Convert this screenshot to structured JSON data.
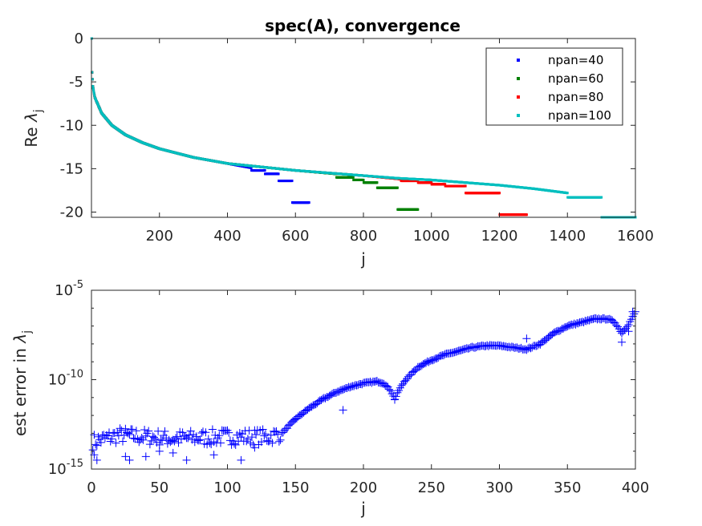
{
  "chart_data": [
    {
      "type": "scatter",
      "title": "spec(A), convergence",
      "xlabel": "j",
      "ylabel_prefix": "Re ",
      "ylabel_symbol": "λ",
      "ylabel_sub": "j",
      "xlim": [
        0,
        1600
      ],
      "ylim": [
        -20.6,
        0
      ],
      "xticks": [
        200,
        400,
        600,
        800,
        1000,
        1200,
        1400,
        1600
      ],
      "xtick_labels": [
        "200",
        "400",
        "600",
        "800",
        "1000",
        "1200",
        "1400",
        "1600"
      ],
      "yticks": [
        0,
        -5,
        -10,
        -15,
        -20
      ],
      "ytick_labels": [
        "0",
        "-5",
        "-10",
        "-15",
        "-20"
      ],
      "grid": false,
      "legend_position": "top-right",
      "series": [
        {
          "name": "npan=40",
          "color": "#0000ff",
          "n": 640,
          "anchors": [
            [
              1,
              0
            ],
            [
              2,
              -3.9
            ],
            [
              4,
              -5.5
            ],
            [
              10,
              -6.8
            ],
            [
              30,
              -8.6
            ],
            [
              60,
              -10.0
            ],
            [
              100,
              -11.1
            ],
            [
              150,
              -12.0
            ],
            [
              200,
              -12.7
            ],
            [
              300,
              -13.7
            ],
            [
              400,
              -14.4
            ],
            [
              470,
              -14.9
            ]
          ],
          "steps": [
            [
              471,
              -15.2
            ],
            [
              511,
              -15.6
            ],
            [
              551,
              -16.4
            ],
            [
              591,
              -18.9
            ]
          ]
        },
        {
          "name": "npan=60",
          "color": "#008000",
          "n": 960,
          "anchors": [
            [
              1,
              0
            ],
            [
              2,
              -3.9
            ],
            [
              4,
              -5.5
            ],
            [
              10,
              -6.8
            ],
            [
              30,
              -8.6
            ],
            [
              60,
              -10.0
            ],
            [
              100,
              -11.1
            ],
            [
              150,
              -12.0
            ],
            [
              200,
              -12.7
            ],
            [
              300,
              -13.7
            ],
            [
              400,
              -14.4
            ],
            [
              500,
              -14.8
            ],
            [
              600,
              -15.2
            ],
            [
              720,
              -15.6
            ]
          ],
          "steps": [
            [
              721,
              -16.0
            ],
            [
              771,
              -16.3
            ],
            [
              801,
              -16.6
            ],
            [
              841,
              -17.2
            ],
            [
              901,
              -19.7
            ]
          ]
        },
        {
          "name": "npan=80",
          "color": "#ff0000",
          "n": 1280,
          "anchors": [
            [
              1,
              0
            ],
            [
              2,
              -3.9
            ],
            [
              4,
              -5.5
            ],
            [
              10,
              -6.8
            ],
            [
              30,
              -8.6
            ],
            [
              60,
              -10.0
            ],
            [
              100,
              -11.1
            ],
            [
              150,
              -12.0
            ],
            [
              200,
              -12.7
            ],
            [
              300,
              -13.7
            ],
            [
              400,
              -14.4
            ],
            [
              500,
              -14.8
            ],
            [
              600,
              -15.2
            ],
            [
              700,
              -15.5
            ],
            [
              800,
              -15.8
            ],
            [
              910,
              -16.2
            ]
          ],
          "steps": [
            [
              911,
              -16.4
            ],
            [
              961,
              -16.6
            ],
            [
              1001,
              -16.8
            ],
            [
              1041,
              -17.0
            ],
            [
              1101,
              -17.8
            ],
            [
              1201,
              -20.3
            ]
          ]
        },
        {
          "name": "npan=100",
          "color": "#00bfbf",
          "n": 1600,
          "anchors": [
            [
              1,
              0
            ],
            [
              2,
              -3.9
            ],
            [
              4,
              -5.5
            ],
            [
              10,
              -6.8
            ],
            [
              30,
              -8.6
            ],
            [
              60,
              -10.0
            ],
            [
              100,
              -11.1
            ],
            [
              150,
              -12.0
            ],
            [
              200,
              -12.7
            ],
            [
              300,
              -13.7
            ],
            [
              400,
              -14.4
            ],
            [
              500,
              -14.8
            ],
            [
              600,
              -15.2
            ],
            [
              700,
              -15.5
            ],
            [
              800,
              -15.8
            ],
            [
              900,
              -16.1
            ],
            [
              1000,
              -16.3
            ],
            [
              1100,
              -16.6
            ],
            [
              1200,
              -16.9
            ],
            [
              1300,
              -17.3
            ],
            [
              1400,
              -17.8
            ]
          ],
          "steps": [
            [
              1401,
              -18.3
            ],
            [
              1501,
              -20.6
            ]
          ]
        }
      ]
    },
    {
      "type": "scatter",
      "xlabel": "j",
      "ylabel_prefix": "est error in ",
      "ylabel_symbol": "λ",
      "ylabel_sub": "j",
      "yscale": "log",
      "xlim": [
        0,
        400
      ],
      "ylim_exp": [
        -15,
        -5
      ],
      "xticks": [
        0,
        50,
        100,
        150,
        200,
        250,
        300,
        350,
        400
      ],
      "xtick_labels": [
        "0",
        "50",
        "100",
        "150",
        "200",
        "250",
        "300",
        "350",
        "400"
      ],
      "yticks_exp": [
        -15,
        -10,
        -5
      ],
      "ytick_base": "10",
      "ytick_exps": [
        "-15",
        "-10",
        "-5"
      ],
      "grid": false,
      "marker": "+",
      "color": "#0000ff",
      "trend_log10": [
        [
          0,
          -13.5
        ],
        [
          20,
          -13.1
        ],
        [
          60,
          -13.3
        ],
        [
          100,
          -13.2
        ],
        [
          130,
          -13.2
        ],
        [
          140,
          -13.0
        ],
        [
          150,
          -12.2
        ],
        [
          160,
          -11.6
        ],
        [
          170,
          -11.1
        ],
        [
          180,
          -10.7
        ],
        [
          190,
          -10.4
        ],
        [
          200,
          -10.2
        ],
        [
          210,
          -10.1
        ],
        [
          215,
          -10.2
        ],
        [
          220,
          -10.6
        ],
        [
          223,
          -11.1
        ],
        [
          226,
          -10.6
        ],
        [
          230,
          -10.1
        ],
        [
          240,
          -9.3
        ],
        [
          250,
          -8.9
        ],
        [
          260,
          -8.6
        ],
        [
          270,
          -8.4
        ],
        [
          280,
          -8.2
        ],
        [
          290,
          -8.1
        ],
        [
          300,
          -8.1
        ],
        [
          310,
          -8.2
        ],
        [
          320,
          -8.3
        ],
        [
          330,
          -8.0
        ],
        [
          340,
          -7.4
        ],
        [
          350,
          -7.0
        ],
        [
          360,
          -6.8
        ],
        [
          370,
          -6.6
        ],
        [
          380,
          -6.6
        ],
        [
          385,
          -6.8
        ],
        [
          390,
          -7.4
        ],
        [
          395,
          -6.9
        ],
        [
          400,
          -6.2
        ]
      ],
      "outliers_log10": [
        [
          2,
          -14.2
        ],
        [
          4,
          -14.5
        ],
        [
          25,
          -14.3
        ],
        [
          28,
          -14.5
        ],
        [
          40,
          -14.3
        ],
        [
          50,
          -14.0
        ],
        [
          60,
          -14.1
        ],
        [
          70,
          -14.5
        ],
        [
          90,
          -14.2
        ],
        [
          110,
          -14.5
        ],
        [
          120,
          -13.8
        ],
        [
          185,
          -11.7
        ],
        [
          223,
          -11.1
        ],
        [
          320,
          -7.7
        ],
        [
          390,
          -7.9
        ],
        [
          395,
          -7.3
        ],
        [
          398,
          -6.2
        ]
      ]
    }
  ]
}
